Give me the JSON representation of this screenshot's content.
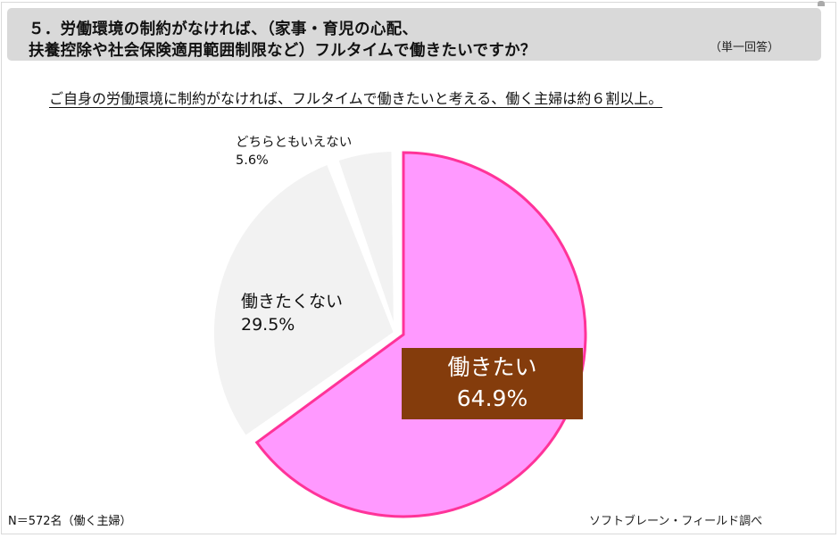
{
  "header": {
    "title_line1": "５．労働環境の制約がなければ、（家事・育児の心配、",
    "title_line2": "扶養控除や社会保険適用範囲制限など）フルタイムで働きたいですか？",
    "note": "（単一回答）"
  },
  "subtitle": "ご自身の労働環境に制約がなければ、フルタイムで働きたいと考える、働く主婦は約６割以上。",
  "labels": {
    "yes_name": "働きたい",
    "yes_pct": "64.9%",
    "no_name": "働きたくない",
    "no_pct": "29.5%",
    "neutral_name": "どちらともいえない",
    "neutral_pct": "5.6%"
  },
  "footer": {
    "sample": "N＝572名（働く主婦）",
    "source": "ソフトブレーン・フィールド調べ"
  },
  "colors": {
    "yes_fill": "#ff99ff",
    "yes_stroke": "#ff3399",
    "other_fill": "#f2f2f2",
    "label_box": "#843c0c",
    "header_bg": "#d9d9d9"
  },
  "chart_data": {
    "type": "pie",
    "title": "労働環境の制約がなければ、フルタイムで働きたいですか？",
    "categories": [
      "働きたい",
      "働きたくない",
      "どちらともいえない"
    ],
    "values": [
      64.9,
      29.5,
      5.6
    ],
    "unit": "%",
    "start_angle": "12 o'clock, clockwise",
    "exploded": "働きたい",
    "n": 572
  }
}
